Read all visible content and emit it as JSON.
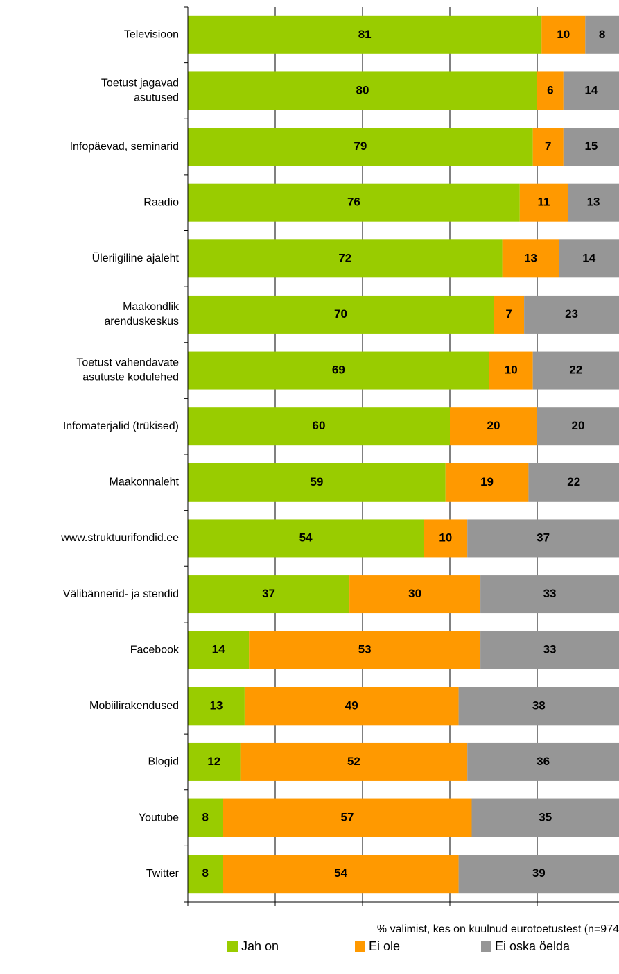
{
  "chart_data": {
    "type": "stacked-bar-horizontal",
    "categories": [
      "Televisioon",
      "Toetust jagavad\nasutused",
      "Infopäevad, seminarid",
      "Raadio",
      "Üleriigiline ajaleht",
      "Maakondlik\narenduskeskus",
      "Toetust vahendavate\nasutuste kodulehed",
      "Infomaterjalid (trükised)",
      "Maakonnaleht",
      "www.struktuurifondid.ee",
      "Välibännerid- ja stendid",
      "Facebook",
      "Mobiilirakendused",
      "Blogid",
      "Youtube",
      "Twitter"
    ],
    "series": [
      {
        "name": "Jah on",
        "color": "#99cc00",
        "values": [
          81,
          80,
          79,
          76,
          72,
          70,
          69,
          60,
          59,
          54,
          37,
          14,
          13,
          12,
          8,
          8
        ]
      },
      {
        "name": "Ei ole",
        "color": "#ff9900",
        "values": [
          10,
          6,
          7,
          11,
          13,
          7,
          10,
          20,
          19,
          10,
          30,
          53,
          49,
          52,
          57,
          54
        ]
      },
      {
        "name": "Ei oska öelda",
        "color": "#969696",
        "values": [
          8,
          14,
          15,
          13,
          14,
          23,
          22,
          20,
          22,
          37,
          33,
          33,
          38,
          36,
          35,
          39
        ]
      }
    ],
    "xlabel": "% valimist, kes on kuulnud eurotoetustest (n=974",
    "xlim": [
      0,
      100
    ],
    "xticks": [
      0,
      20,
      40,
      60,
      80,
      100
    ],
    "grid": true,
    "legend": "bottom"
  }
}
